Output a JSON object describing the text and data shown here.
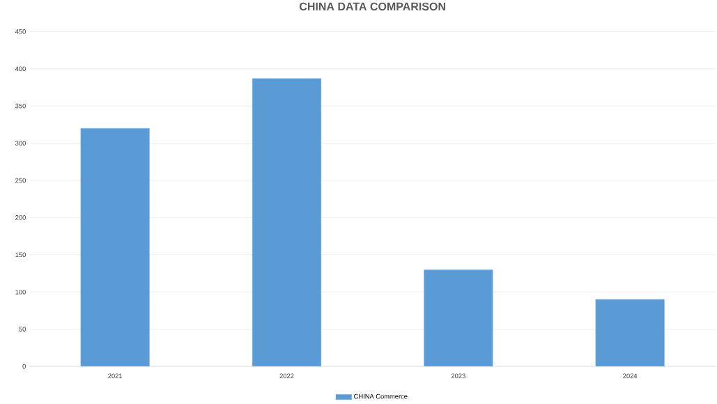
{
  "chart_data": {
    "type": "bar",
    "title": "CHINA DATA COMPARISON",
    "categories": [
      "2021",
      "2022",
      "2023",
      "2024"
    ],
    "series": [
      {
        "name": "CHINA Commerce",
        "color": "#5b9bd5",
        "values": [
          320,
          387,
          130,
          90
        ]
      }
    ],
    "ylim": [
      0,
      450
    ],
    "yticks": [
      0,
      50,
      100,
      150,
      200,
      250,
      300,
      350,
      400,
      450
    ],
    "grid": "y",
    "legend": "bottom"
  }
}
